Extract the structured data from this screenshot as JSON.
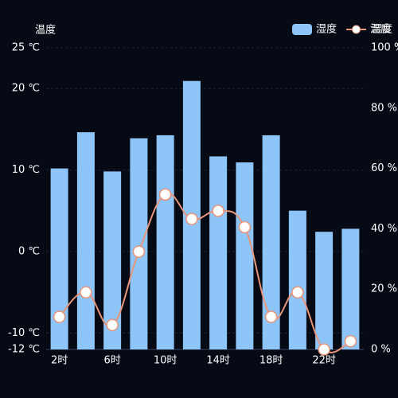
{
  "chart_data": {
    "type": "bar-line",
    "y_axis_label": "温度",
    "y2_axis_label": "湿度",
    "categories": [
      "2时",
      null,
      "6时",
      null,
      "10时",
      null,
      "14时",
      null,
      "18时",
      null,
      "22时",
      null
    ],
    "series": [
      {
        "name": "湿度",
        "type": "bar",
        "axis": "y2",
        "color": "#8ec5f8",
        "values": [
          60,
          72,
          59,
          70,
          71,
          89,
          64,
          62,
          71,
          46,
          39,
          40
        ]
      },
      {
        "name": "温度",
        "type": "line",
        "color": "#e8957a",
        "values": [
          -8,
          -5,
          -9,
          0,
          7,
          4,
          5,
          3,
          -8,
          -5,
          -12,
          -11
        ]
      }
    ],
    "ylim": [
      -12,
      25
    ],
    "yticks": [
      {
        "value": -12,
        "label": "-12 ℃"
      },
      {
        "value": -10,
        "label": "-10 ℃"
      },
      {
        "value": 0,
        "label": "0 ℃"
      },
      {
        "value": 10,
        "label": "10 ℃"
      },
      {
        "value": 20,
        "label": "20 ℃"
      },
      {
        "value": 25,
        "label": "25 ℃"
      }
    ],
    "y2lim": [
      0,
      100
    ],
    "y2ticks": [
      {
        "value": 0,
        "label": "0 %"
      },
      {
        "value": 20,
        "label": "20 %"
      },
      {
        "value": 40,
        "label": "40 %"
      },
      {
        "value": 60,
        "label": "60 %"
      },
      {
        "value": 80,
        "label": "80 %"
      },
      {
        "value": 100,
        "label": "100 %"
      }
    ],
    "grid": true,
    "legend": "top-right"
  }
}
